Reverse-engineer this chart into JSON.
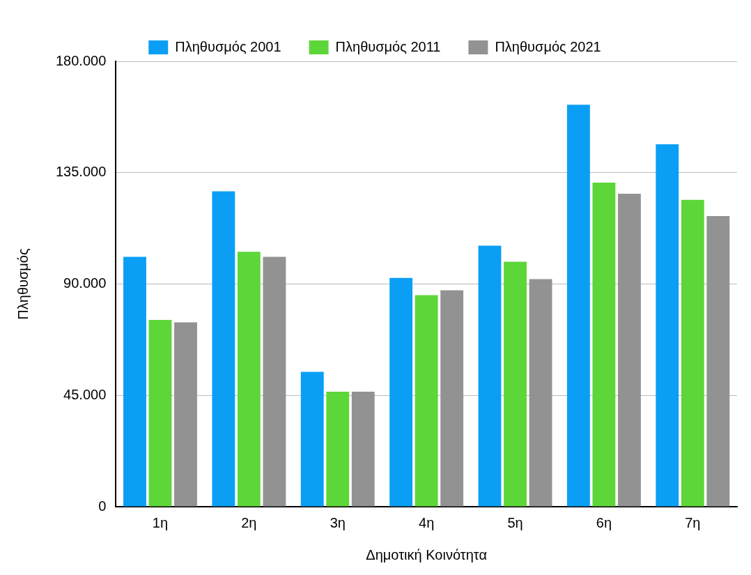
{
  "chart_data": {
    "type": "bar",
    "xlabel": "Δημοτική Κοινότητα",
    "ylabel": "Πληθυσμός",
    "categories": [
      "1η",
      "2η",
      "3η",
      "4η",
      "5η",
      "6η",
      "7η"
    ],
    "series": [
      {
        "name": "Πληθυσμός 2001",
        "color": "#0a9ff5",
        "values": [
          101000,
          127500,
          54500,
          92500,
          105500,
          162500,
          146500
        ]
      },
      {
        "name": "Πληθυσμός 2011",
        "color": "#5dd63a",
        "values": [
          75500,
          103000,
          46500,
          85500,
          99000,
          131000,
          124000
        ]
      },
      {
        "name": "Πληθυσμός 2021",
        "color": "#929292",
        "values": [
          74500,
          101000,
          46500,
          87500,
          92000,
          126500,
          117500
        ]
      }
    ],
    "ylim": [
      0,
      180000
    ],
    "yticks": [
      {
        "value": 0,
        "label": "0"
      },
      {
        "value": 45000,
        "label": "45.000"
      },
      {
        "value": 90000,
        "label": "90.000"
      },
      {
        "value": 135000,
        "label": "135.000"
      },
      {
        "value": 180000,
        "label": "180.000"
      }
    ],
    "grid": "y",
    "legend": "top"
  }
}
